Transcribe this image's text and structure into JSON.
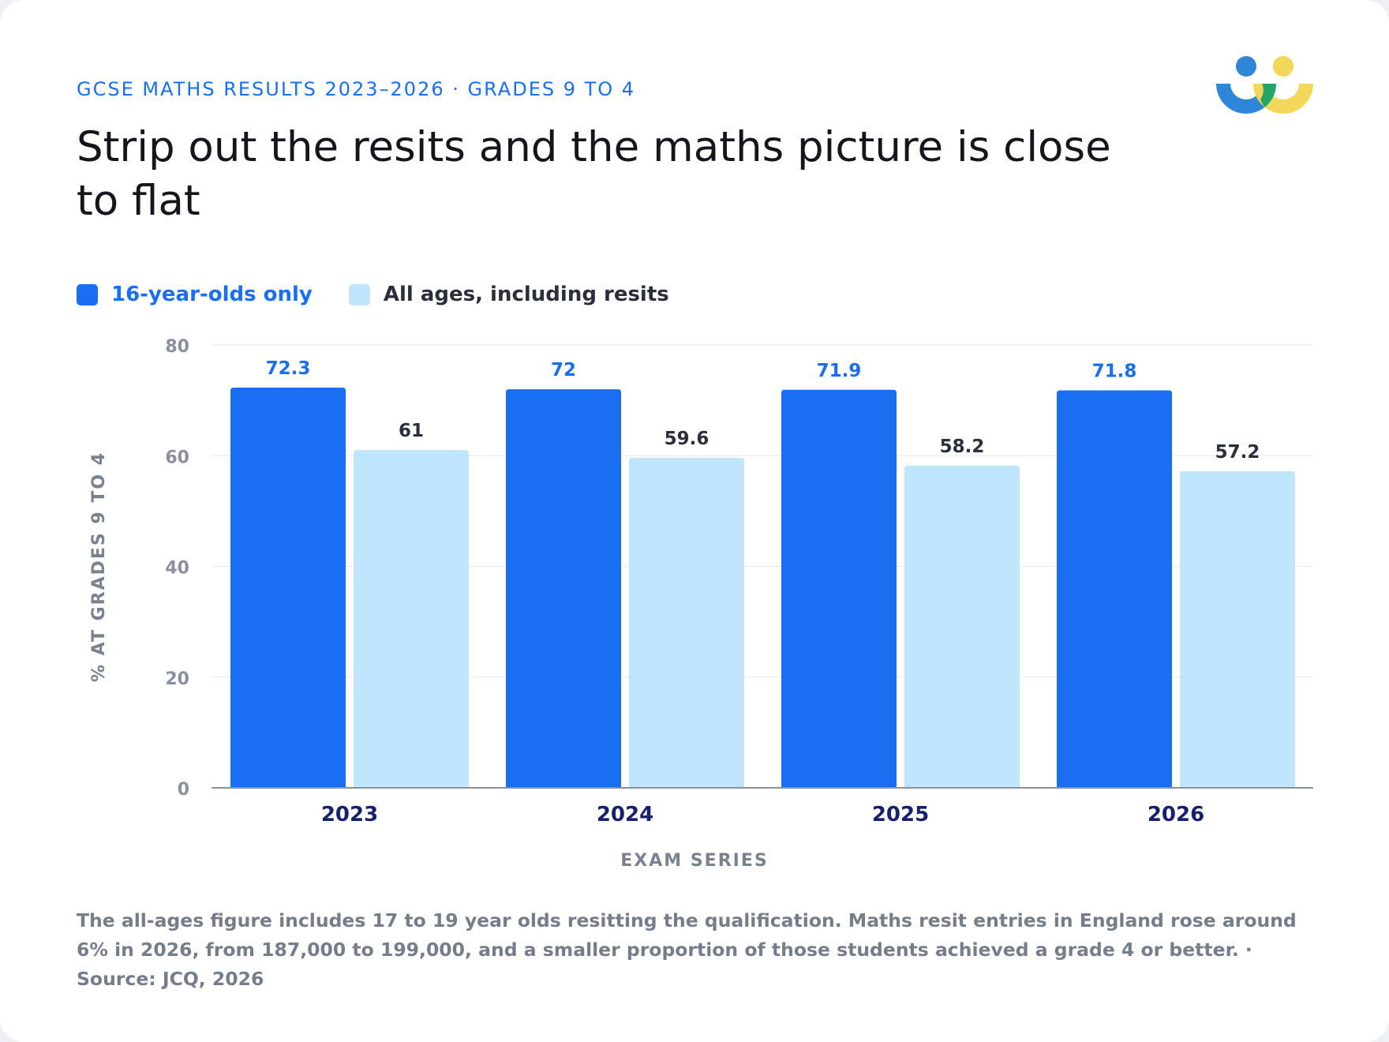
{
  "header": {
    "kicker": "GCSE MATHS RESULTS 2023–2026 · GRADES 9 TO 4",
    "title": "Strip out the resits and the maths picture is close to flat"
  },
  "logo": {
    "icon": "people-logo-icon",
    "colors": [
      "#2f86d8",
      "#22a567",
      "#f2d75a"
    ]
  },
  "legend": {
    "items": [
      {
        "label": "16-year-olds only",
        "color": "#1a6ef2"
      },
      {
        "label": "All ages, including resits",
        "color": "#c0e6fd"
      }
    ]
  },
  "chart_data": {
    "type": "bar",
    "categories": [
      "2023",
      "2024",
      "2025",
      "2026"
    ],
    "series": [
      {
        "name": "16-year-olds only",
        "values": [
          72.3,
          72,
          71.9,
          71.8
        ],
        "color": "#1a6ef2",
        "label_color": "#1a6ef2"
      },
      {
        "name": "All ages, including resits",
        "values": [
          61,
          59.6,
          58.2,
          57.2
        ],
        "color": "#c0e6fd",
        "label_color": "#2b2f3a"
      }
    ],
    "xlabel": "EXAM SERIES",
    "ylabel": "% AT GRADES 9 TO 4",
    "ylim": [
      0,
      80
    ],
    "yticks": [
      0,
      20,
      40,
      60,
      80
    ],
    "grid": true,
    "legend_position": "top-left"
  },
  "footnote": "The all-ages figure includes 17 to 19 year olds resitting the qualification. Maths resit entries in England rose around 6% in 2026, from 187,000 to 199,000, and a smaller proportion of those students achieved a grade 4 or better. · Source: JCQ, 2026"
}
